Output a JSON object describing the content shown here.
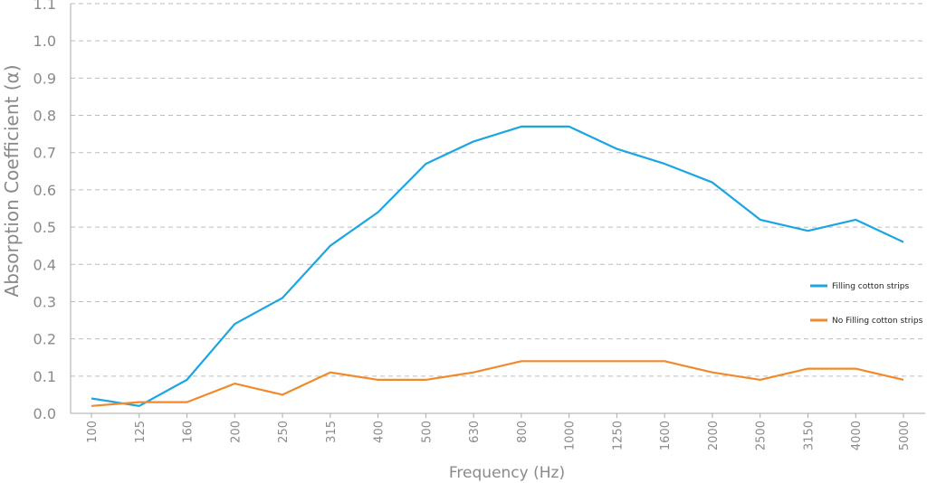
{
  "chart_data": {
    "type": "line",
    "xlabel": "Frequency (Hz)",
    "ylabel": "Absorption Coefficient (α)",
    "categories": [
      "100",
      "125",
      "160",
      "200",
      "250",
      "315",
      "400",
      "500",
      "630",
      "800",
      "1000",
      "1250",
      "1600",
      "2000",
      "2500",
      "3150",
      "4000",
      "5000"
    ],
    "ylim": [
      0,
      1.1
    ],
    "yticks": [
      "0.0",
      "0.1",
      "0.2",
      "0.3",
      "0.4",
      "0.5",
      "0.6",
      "0.7",
      "0.8",
      "0.9",
      "1.0",
      "1.1"
    ],
    "grid": "horizontal-dashed",
    "legend_position": "right",
    "series": [
      {
        "name": "Filling cotton strips",
        "color": "#1ba6e2",
        "values": [
          0.04,
          0.02,
          0.09,
          0.24,
          0.31,
          0.45,
          0.54,
          0.67,
          0.73,
          0.77,
          0.77,
          0.71,
          0.67,
          0.62,
          0.52,
          0.49,
          0.52,
          0.46
        ]
      },
      {
        "name": "No Filling cotton strips",
        "color": "#f08a2c",
        "values": [
          0.02,
          0.03,
          0.03,
          0.08,
          0.05,
          0.11,
          0.09,
          0.09,
          0.11,
          0.14,
          0.14,
          0.14,
          0.14,
          0.11,
          0.09,
          0.12,
          0.12,
          0.09
        ]
      }
    ]
  }
}
